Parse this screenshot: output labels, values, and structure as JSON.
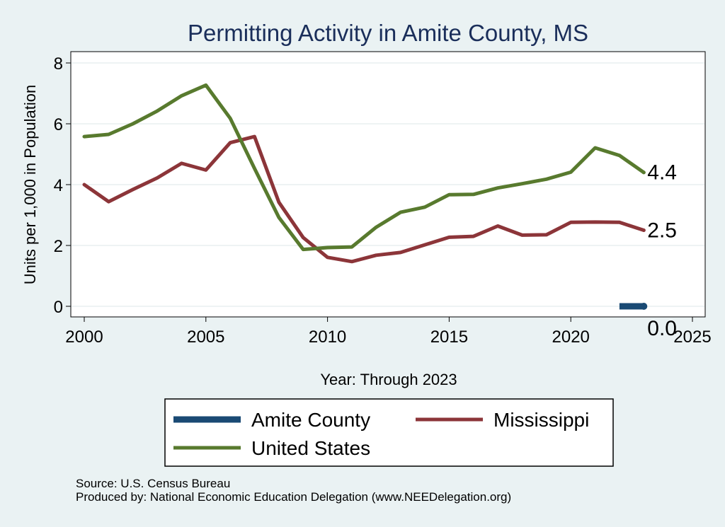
{
  "chart_data": {
    "type": "line",
    "title": "Permitting Activity in Amite County, MS",
    "xlabel": "Year: Through 2023",
    "ylabel": "Units per 1,000 in Population",
    "xlim": [
      2000,
      2025
    ],
    "ylim": [
      0,
      8
    ],
    "x_ticks": [
      2000,
      2005,
      2010,
      2015,
      2020,
      2025
    ],
    "y_ticks": [
      0,
      2,
      4,
      6,
      8
    ],
    "grid": true,
    "series": [
      {
        "name": "Amite County",
        "color": "#1a4a74",
        "x": [
          2022,
          2023
        ],
        "values": [
          0.0,
          0.0
        ],
        "end_label": "0.0"
      },
      {
        "name": "Mississippi",
        "color": "#8c3539",
        "x": [
          2000,
          2001,
          2002,
          2003,
          2004,
          2005,
          2006,
          2007,
          2008,
          2009,
          2010,
          2011,
          2012,
          2013,
          2014,
          2015,
          2016,
          2017,
          2018,
          2019,
          2020,
          2021,
          2022,
          2023
        ],
        "values": [
          4.0,
          3.44,
          3.84,
          4.22,
          4.7,
          4.48,
          5.38,
          5.58,
          3.42,
          2.26,
          1.61,
          1.47,
          1.68,
          1.77,
          2.02,
          2.27,
          2.3,
          2.64,
          2.34,
          2.35,
          2.76,
          2.77,
          2.76,
          2.5
        ],
        "end_label": "2.5"
      },
      {
        "name": "United States",
        "color": "#587a2e",
        "x": [
          2000,
          2001,
          2002,
          2003,
          2004,
          2005,
          2006,
          2007,
          2008,
          2009,
          2010,
          2011,
          2012,
          2013,
          2014,
          2015,
          2016,
          2017,
          2018,
          2019,
          2020,
          2021,
          2022,
          2023
        ],
        "values": [
          5.58,
          5.65,
          6.0,
          6.42,
          6.92,
          7.27,
          6.18,
          4.53,
          2.92,
          1.87,
          1.93,
          1.95,
          2.6,
          3.09,
          3.26,
          3.67,
          3.68,
          3.89,
          4.03,
          4.18,
          4.41,
          5.21,
          4.96,
          4.4
        ],
        "end_label": "4.4"
      }
    ],
    "legend_position": "bottom"
  },
  "footer": {
    "source": "Source: U.S. Census Bureau",
    "produced_by": "Produced by: National Economic Education Delegation (www.NEEDelegation.org)"
  }
}
